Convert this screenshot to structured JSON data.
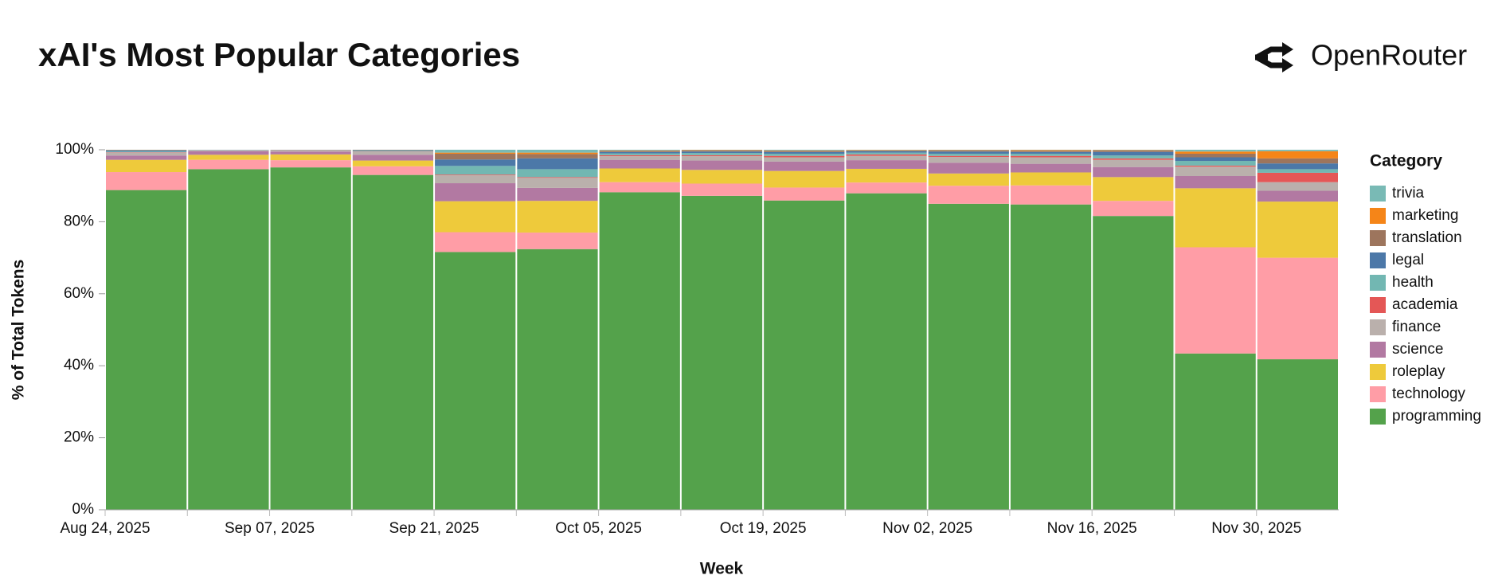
{
  "header": {
    "title": "xAI's Most Popular Categories",
    "brand": "OpenRouter"
  },
  "chart_data": {
    "type": "stacked_bar",
    "x_label": "Week",
    "y_label": "% of Total Tokens",
    "legend_title": "Category",
    "legend": "right",
    "categories": [
      "Aug 24, 2025",
      null,
      "Sep 07, 2025",
      null,
      "Sep 21, 2025",
      null,
      "Oct 05, 2025",
      null,
      "Oct 19, 2025",
      null,
      "Nov 02, 2025",
      null,
      "Nov 16, 2025",
      null,
      "Nov 30, 2025"
    ],
    "ylim": [
      0,
      100
    ],
    "yticks": [
      {
        "value": 0,
        "label": "0%"
      },
      {
        "value": 20,
        "label": "20%"
      },
      {
        "value": 40,
        "label": "40%"
      },
      {
        "value": 60,
        "label": "60%"
      },
      {
        "value": 80,
        "label": "80%"
      },
      {
        "value": 100,
        "label": "100%"
      }
    ],
    "series": [
      {
        "name": "programming",
        "color": "#54a24b",
        "values": [
          88.8,
          94.6,
          95.1,
          93.0,
          71.6,
          72.4,
          88.2,
          87.2,
          85.9,
          87.9,
          85.0,
          84.8,
          81.6,
          43.4,
          41.8
        ]
      },
      {
        "name": "technology",
        "color": "#ff9da6",
        "values": [
          5.0,
          2.6,
          2.0,
          2.4,
          5.5,
          4.6,
          2.8,
          3.4,
          3.6,
          3.0,
          5.0,
          5.3,
          4.2,
          29.5,
          28.2
        ]
      },
      {
        "name": "roleplay",
        "color": "#eeca3b",
        "values": [
          3.4,
          1.4,
          1.6,
          1.6,
          8.6,
          8.8,
          3.8,
          3.8,
          4.6,
          3.8,
          3.4,
          3.6,
          6.6,
          16.4,
          15.6
        ]
      },
      {
        "name": "science",
        "color": "#b279a2",
        "values": [
          1.2,
          1.0,
          0.8,
          1.6,
          5.0,
          3.6,
          2.4,
          2.6,
          2.6,
          2.4,
          3.0,
          2.4,
          2.8,
          3.4,
          3.0
        ]
      },
      {
        "name": "finance",
        "color": "#bab0ac",
        "values": [
          0.8,
          0.2,
          0.3,
          0.8,
          2.2,
          2.8,
          1.0,
          1.2,
          1.2,
          1.2,
          1.6,
          1.8,
          2.0,
          2.6,
          2.4
        ]
      },
      {
        "name": "academia",
        "color": "#e45756",
        "values": [
          0.1,
          0.05,
          0.05,
          0.1,
          0.2,
          0.2,
          0.3,
          0.3,
          0.4,
          0.4,
          0.3,
          0.4,
          0.4,
          0.3,
          2.6
        ]
      },
      {
        "name": "health",
        "color": "#72b7b2",
        "values": [
          0.2,
          0.05,
          0.05,
          0.2,
          2.4,
          2.2,
          0.5,
          0.6,
          0.6,
          0.5,
          0.6,
          0.6,
          0.8,
          1.3,
          1.0
        ]
      },
      {
        "name": "legal",
        "color": "#4c78a8",
        "values": [
          0.3,
          0.05,
          0.05,
          0.2,
          1.8,
          3.0,
          0.4,
          0.4,
          0.5,
          0.4,
          0.6,
          0.5,
          1.0,
          1.0,
          1.6
        ]
      },
      {
        "name": "translation",
        "color": "#9d755d",
        "values": [
          0.1,
          0,
          0.05,
          0.05,
          1.6,
          1.2,
          0.3,
          0.3,
          0.3,
          0.2,
          0.3,
          0.3,
          0.4,
          1.0,
          1.4
        ]
      },
      {
        "name": "marketing",
        "color": "#f58518",
        "values": [
          0.05,
          0,
          0,
          0.05,
          0.3,
          0.4,
          0.1,
          0.1,
          0.1,
          0.1,
          0.1,
          0.2,
          0.1,
          0.6,
          2.0
        ]
      },
      {
        "name": "trivia",
        "color": "#79bab5",
        "values": [
          0.05,
          0.05,
          0,
          0,
          0.8,
          0.8,
          0.2,
          0.1,
          0.2,
          0.1,
          0.1,
          0.1,
          0.1,
          0.5,
          0.4
        ]
      }
    ]
  }
}
